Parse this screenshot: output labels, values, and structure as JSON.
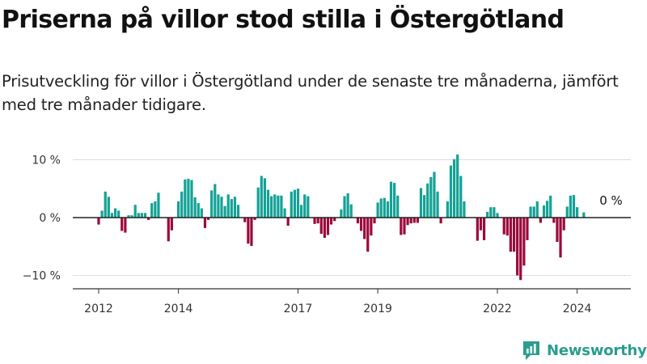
{
  "header": {
    "title": "Priserna på villor stod stilla i Östergötland",
    "subtitle": "Prisutveckling för villor i Östergötland under de senaste tre månaderna, jämfört med tre månader tidigare."
  },
  "branding": {
    "name": "Newsworthy",
    "logo_icon": "bar-chart-logo-icon",
    "color": "#2a9d8f"
  },
  "colors": {
    "positive": "#14a296",
    "negative": "#9b0a3c",
    "grid": "#dddddd",
    "axis": "#333333"
  },
  "chart_data": {
    "type": "bar",
    "title": "",
    "xlabel": "",
    "ylabel": "",
    "ylim": [
      -12,
      12
    ],
    "y_ticks": [
      {
        "value": 10,
        "label": "10 %"
      },
      {
        "value": 0,
        "label": "0 %"
      },
      {
        "value": -10,
        "label": "−10 %"
      }
    ],
    "x_ticks": [
      {
        "value": 2012.0,
        "label": "2012"
      },
      {
        "value": 2014.0,
        "label": "2014"
      },
      {
        "value": 2017.0,
        "label": "2017"
      },
      {
        "value": 2019.0,
        "label": "2019"
      },
      {
        "value": 2022.0,
        "label": "2022"
      },
      {
        "value": 2024.0,
        "label": "2024"
      }
    ],
    "annotation": {
      "text": "0 %",
      "x": 2024.5,
      "y": 0
    },
    "grid": true,
    "series": [
      {
        "x": [
          2012.0,
          2012.083,
          2012.167,
          2012.25,
          2012.333,
          2012.417,
          2012.5,
          2012.583,
          2012.667,
          2012.75,
          2012.833,
          2012.917,
          2013.0,
          2013.083,
          2013.167,
          2013.25,
          2013.333,
          2013.417,
          2013.5,
          2013.583,
          2013.667,
          2013.75,
          2013.833,
          2013.917,
          2014.0,
          2014.083,
          2014.167,
          2014.25,
          2014.333,
          2014.417,
          2014.5,
          2014.583,
          2014.667,
          2014.75,
          2014.833,
          2014.917,
          2015.0,
          2015.083,
          2015.167,
          2015.25,
          2015.333,
          2015.417,
          2015.5,
          2015.583,
          2015.667,
          2015.75,
          2015.833,
          2015.917,
          2016.0,
          2016.083,
          2016.167,
          2016.25,
          2016.333,
          2016.417,
          2016.5,
          2016.583,
          2016.667,
          2016.75,
          2016.833,
          2016.917,
          2017.0,
          2017.083,
          2017.167,
          2017.25,
          2017.333,
          2017.417,
          2017.5,
          2017.583,
          2017.667,
          2017.75,
          2017.833,
          2017.917,
          2018.0,
          2018.083,
          2018.167,
          2018.25,
          2018.333,
          2018.417,
          2018.5,
          2018.583,
          2018.667,
          2018.75,
          2018.833,
          2018.917,
          2019.0,
          2019.083,
          2019.167,
          2019.25,
          2019.333,
          2019.417,
          2019.5,
          2019.583,
          2019.667,
          2019.75,
          2019.833,
          2019.917,
          2020.0,
          2020.083,
          2020.167,
          2020.25,
          2020.333,
          2020.417,
          2020.5,
          2020.583,
          2020.667,
          2020.75,
          2020.833,
          2020.917,
          2021.0,
          2021.083,
          2021.167,
          2021.25,
          2021.333,
          2021.417,
          2021.5,
          2021.583,
          2021.667,
          2021.75,
          2021.833,
          2021.917,
          2022.0,
          2022.083,
          2022.167,
          2022.25,
          2022.333,
          2022.417,
          2022.5,
          2022.583,
          2022.667,
          2022.75,
          2022.833,
          2022.917,
          2023.0,
          2023.083,
          2023.167,
          2023.25,
          2023.333,
          2023.417,
          2023.5,
          2023.583,
          2023.667,
          2023.75,
          2023.833,
          2023.917,
          2024.0,
          2024.083,
          2024.167,
          2024.25,
          2024.333,
          2024.417,
          2024.5
        ],
        "values": [
          -1.2,
          1.2,
          4.5,
          3.6,
          0.8,
          1.6,
          1.2,
          -2.3,
          -2.6,
          0.4,
          0.4,
          2.2,
          0.8,
          0.8,
          0.8,
          -0.4,
          2.5,
          2.8,
          4.3,
          0,
          0,
          -4.1,
          -2.2,
          0,
          2.8,
          4.5,
          6.6,
          6.7,
          6.5,
          3.5,
          2.5,
          1.6,
          -1.8,
          -0.4,
          4.7,
          5.8,
          4.0,
          3.6,
          2.0,
          4.0,
          3.2,
          3.6,
          2.2,
          0,
          -0.8,
          -4.5,
          -4.9,
          -0.4,
          5.2,
          7.2,
          6.8,
          4.8,
          3.7,
          4.0,
          3.8,
          3.8,
          1.6,
          -1.4,
          4.5,
          4.8,
          5.0,
          2.2,
          4.0,
          3.7,
          0,
          -1.1,
          -1.0,
          -2.8,
          -3.5,
          -3.0,
          -1.2,
          -0.6,
          0,
          1.4,
          3.7,
          4.2,
          2.3,
          0,
          -1.0,
          -2.3,
          -3.7,
          -5.9,
          -3.1,
          -1.0,
          2.6,
          3.3,
          3.4,
          2.8,
          6.2,
          6.0,
          3.8,
          -3.0,
          -2.9,
          -1.3,
          -1.0,
          -0.9,
          -0.9,
          5.1,
          3.9,
          5.9,
          7.0,
          7.9,
          4.5,
          -1.0,
          0,
          2.8,
          9.0,
          10.1,
          10.9,
          7.2,
          2.8,
          0,
          0,
          0,
          -4.0,
          -2.2,
          -3.9,
          1.0,
          1.8,
          1.8,
          0.8,
          0,
          -2.9,
          -3.1,
          -5.9,
          -5.9,
          -10.0,
          -10.8,
          -8.3,
          -3.9,
          1.9,
          1.9,
          2.8,
          -0.9,
          2.1,
          2.9,
          3.8,
          -0.9,
          -4.2,
          -6.9,
          -2.2,
          1.9,
          3.8,
          3.9,
          1.8,
          0,
          0.9,
          0,
          0,
          0,
          0
        ]
      }
    ]
  }
}
